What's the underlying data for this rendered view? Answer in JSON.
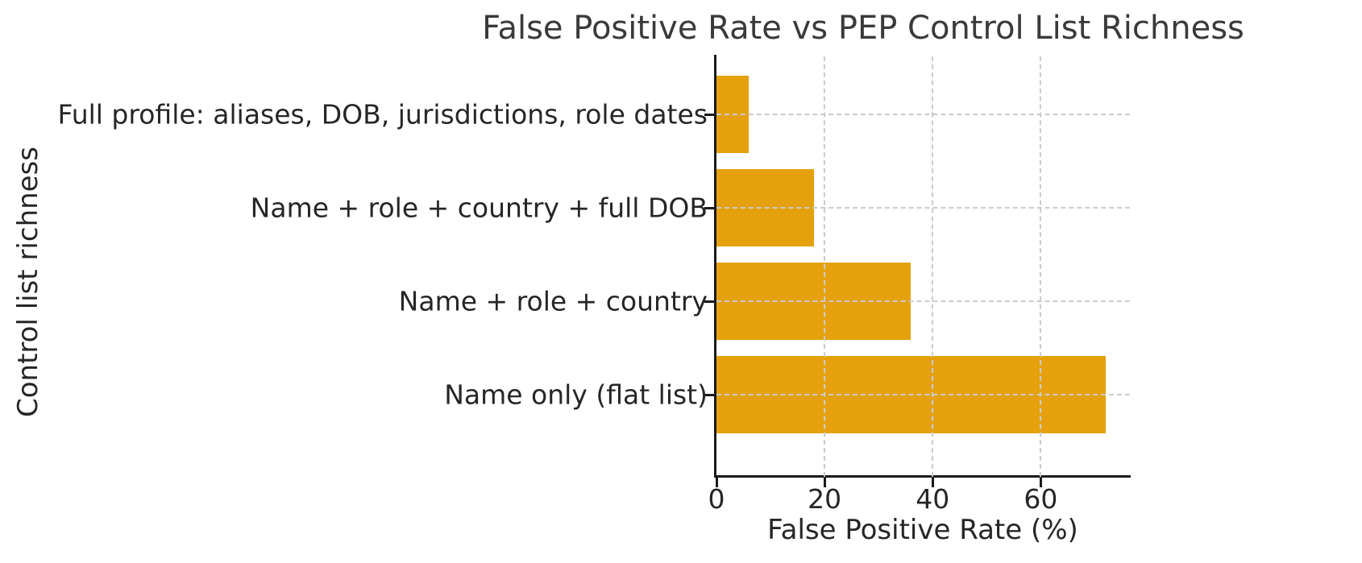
{
  "chart_data": {
    "type": "bar",
    "orientation": "horizontal",
    "title": "False Positive Rate vs PEP Control List Richness",
    "xlabel": "False Positive Rate (%)",
    "ylabel": "Control list richness",
    "categories": [
      "Full profile: aliases, DOB, jurisdictions, role dates",
      "Name + role + country + full DOB",
      "Name + role + country",
      "Name only (flat list)"
    ],
    "values": [
      6,
      18,
      36,
      72
    ],
    "xticks": [
      0,
      20,
      40,
      60
    ],
    "xlim": [
      0,
      76.5
    ],
    "grid": "dashed gridlines on both axes, drawn above bars",
    "legend": "none",
    "bar_color": "#E4A10B",
    "background_color": "#FFFFFF",
    "axis_color": "#1a1a1a",
    "gridline_color": "#cbcbcb",
    "text_color": "#262626"
  }
}
